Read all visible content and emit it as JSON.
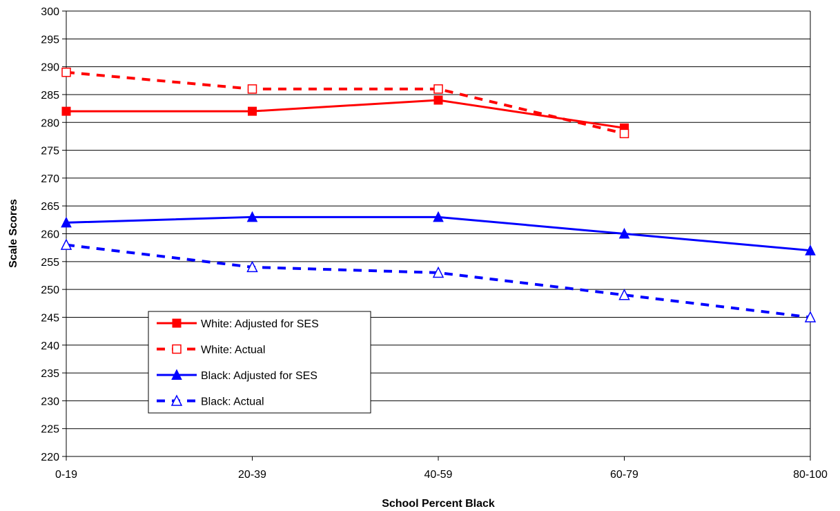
{
  "chart_data": {
    "type": "line",
    "title": "",
    "xlabel": "School Percent Black",
    "ylabel": "Scale Scores",
    "ylim": [
      220,
      300
    ],
    "ytick_step": 5,
    "grid": "horizontal",
    "legend_position": "lower-left",
    "categories": [
      "0-19",
      "20-39",
      "40-59",
      "60-79",
      "80-100"
    ],
    "series": [
      {
        "name": "White: Adjusted for SES",
        "color": "#ff0000",
        "dashed": false,
        "marker": "square-filled",
        "values": [
          282,
          282,
          284,
          279,
          null
        ]
      },
      {
        "name": "White: Actual",
        "color": "#ff0000",
        "dashed": true,
        "marker": "square-open",
        "values": [
          289,
          286,
          286,
          278,
          null
        ]
      },
      {
        "name": "Black: Adjusted for SES",
        "color": "#0000ff",
        "dashed": false,
        "marker": "triangle-filled",
        "values": [
          262,
          263,
          263,
          260,
          257
        ]
      },
      {
        "name": "Black: Actual",
        "color": "#0000ff",
        "dashed": true,
        "marker": "triangle-open",
        "values": [
          258,
          254,
          253,
          249,
          245
        ]
      }
    ]
  }
}
